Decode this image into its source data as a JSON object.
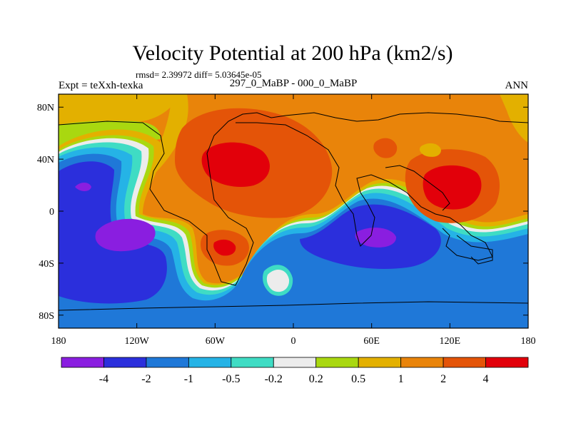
{
  "chart_data": {
    "type": "heatmap",
    "title": "Velocity Potential at 200 hPa (km2/s)",
    "stats": "rmsd= 2.39972 diff= 5.03645e-05",
    "subtitle_left": "Expt = teXxh-texka",
    "subtitle_center": "297_0_MaBP - 000_0_MaBP",
    "subtitle_right": "ANN",
    "x_ticks": [
      {
        "value": -180,
        "label": "180"
      },
      {
        "value": -120,
        "label": "120W"
      },
      {
        "value": -60,
        "label": "60W"
      },
      {
        "value": 0,
        "label": "0"
      },
      {
        "value": 60,
        "label": "60E"
      },
      {
        "value": 120,
        "label": "120E"
      },
      {
        "value": 180,
        "label": "180"
      }
    ],
    "y_ticks": [
      {
        "value": 80,
        "label": "80N"
      },
      {
        "value": 40,
        "label": "40N"
      },
      {
        "value": 0,
        "label": "0"
      },
      {
        "value": -40,
        "label": "40S"
      },
      {
        "value": -80,
        "label": "80S"
      }
    ],
    "xlim": [
      -180,
      180
    ],
    "ylim": [
      -90,
      90
    ],
    "colorbar": {
      "colors": [
        "#8a1ee0",
        "#2b2fdc",
        "#1f78d8",
        "#25b3e6",
        "#3fdcc4",
        "#ececec",
        "#a9d810",
        "#e3b000",
        "#e9840a",
        "#e45408",
        "#e2000a"
      ],
      "labels": [
        "-4",
        "-2",
        "-1",
        "-0.5",
        "-0.2",
        "0.2",
        "0.5",
        "1",
        "2",
        "4"
      ]
    }
  }
}
